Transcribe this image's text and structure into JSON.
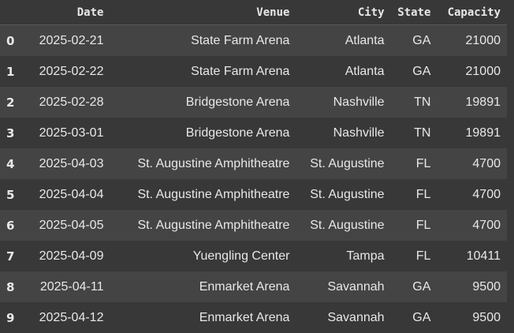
{
  "table": {
    "columns": [
      "",
      "Date",
      "Venue",
      "City",
      "State",
      "Capacity"
    ],
    "rows": [
      [
        "0",
        "2025-02-21",
        "State Farm Arena",
        "Atlanta",
        "GA",
        "21000"
      ],
      [
        "1",
        "2025-02-22",
        "State Farm Arena",
        "Atlanta",
        "GA",
        "21000"
      ],
      [
        "2",
        "2025-02-28",
        "Bridgestone Arena",
        "Nashville",
        "TN",
        "19891"
      ],
      [
        "3",
        "2025-03-01",
        "Bridgestone Arena",
        "Nashville",
        "TN",
        "19891"
      ],
      [
        "4",
        "2025-04-03",
        "St. Augustine Amphitheatre",
        "St. Augustine",
        "FL",
        "4700"
      ],
      [
        "5",
        "2025-04-04",
        "St. Augustine Amphitheatre",
        "St. Augustine",
        "FL",
        "4700"
      ],
      [
        "6",
        "2025-04-05",
        "St. Augustine Amphitheatre",
        "St. Augustine",
        "FL",
        "4700"
      ],
      [
        "7",
        "2025-04-09",
        "Yuengling Center",
        "Tampa",
        "FL",
        "10411"
      ],
      [
        "8",
        "2025-04-11",
        "Enmarket Arena",
        "Savannah",
        "GA",
        "9500"
      ],
      [
        "9",
        "2025-04-12",
        "Enmarket Arena",
        "Savannah",
        "GA",
        "9500"
      ]
    ]
  }
}
